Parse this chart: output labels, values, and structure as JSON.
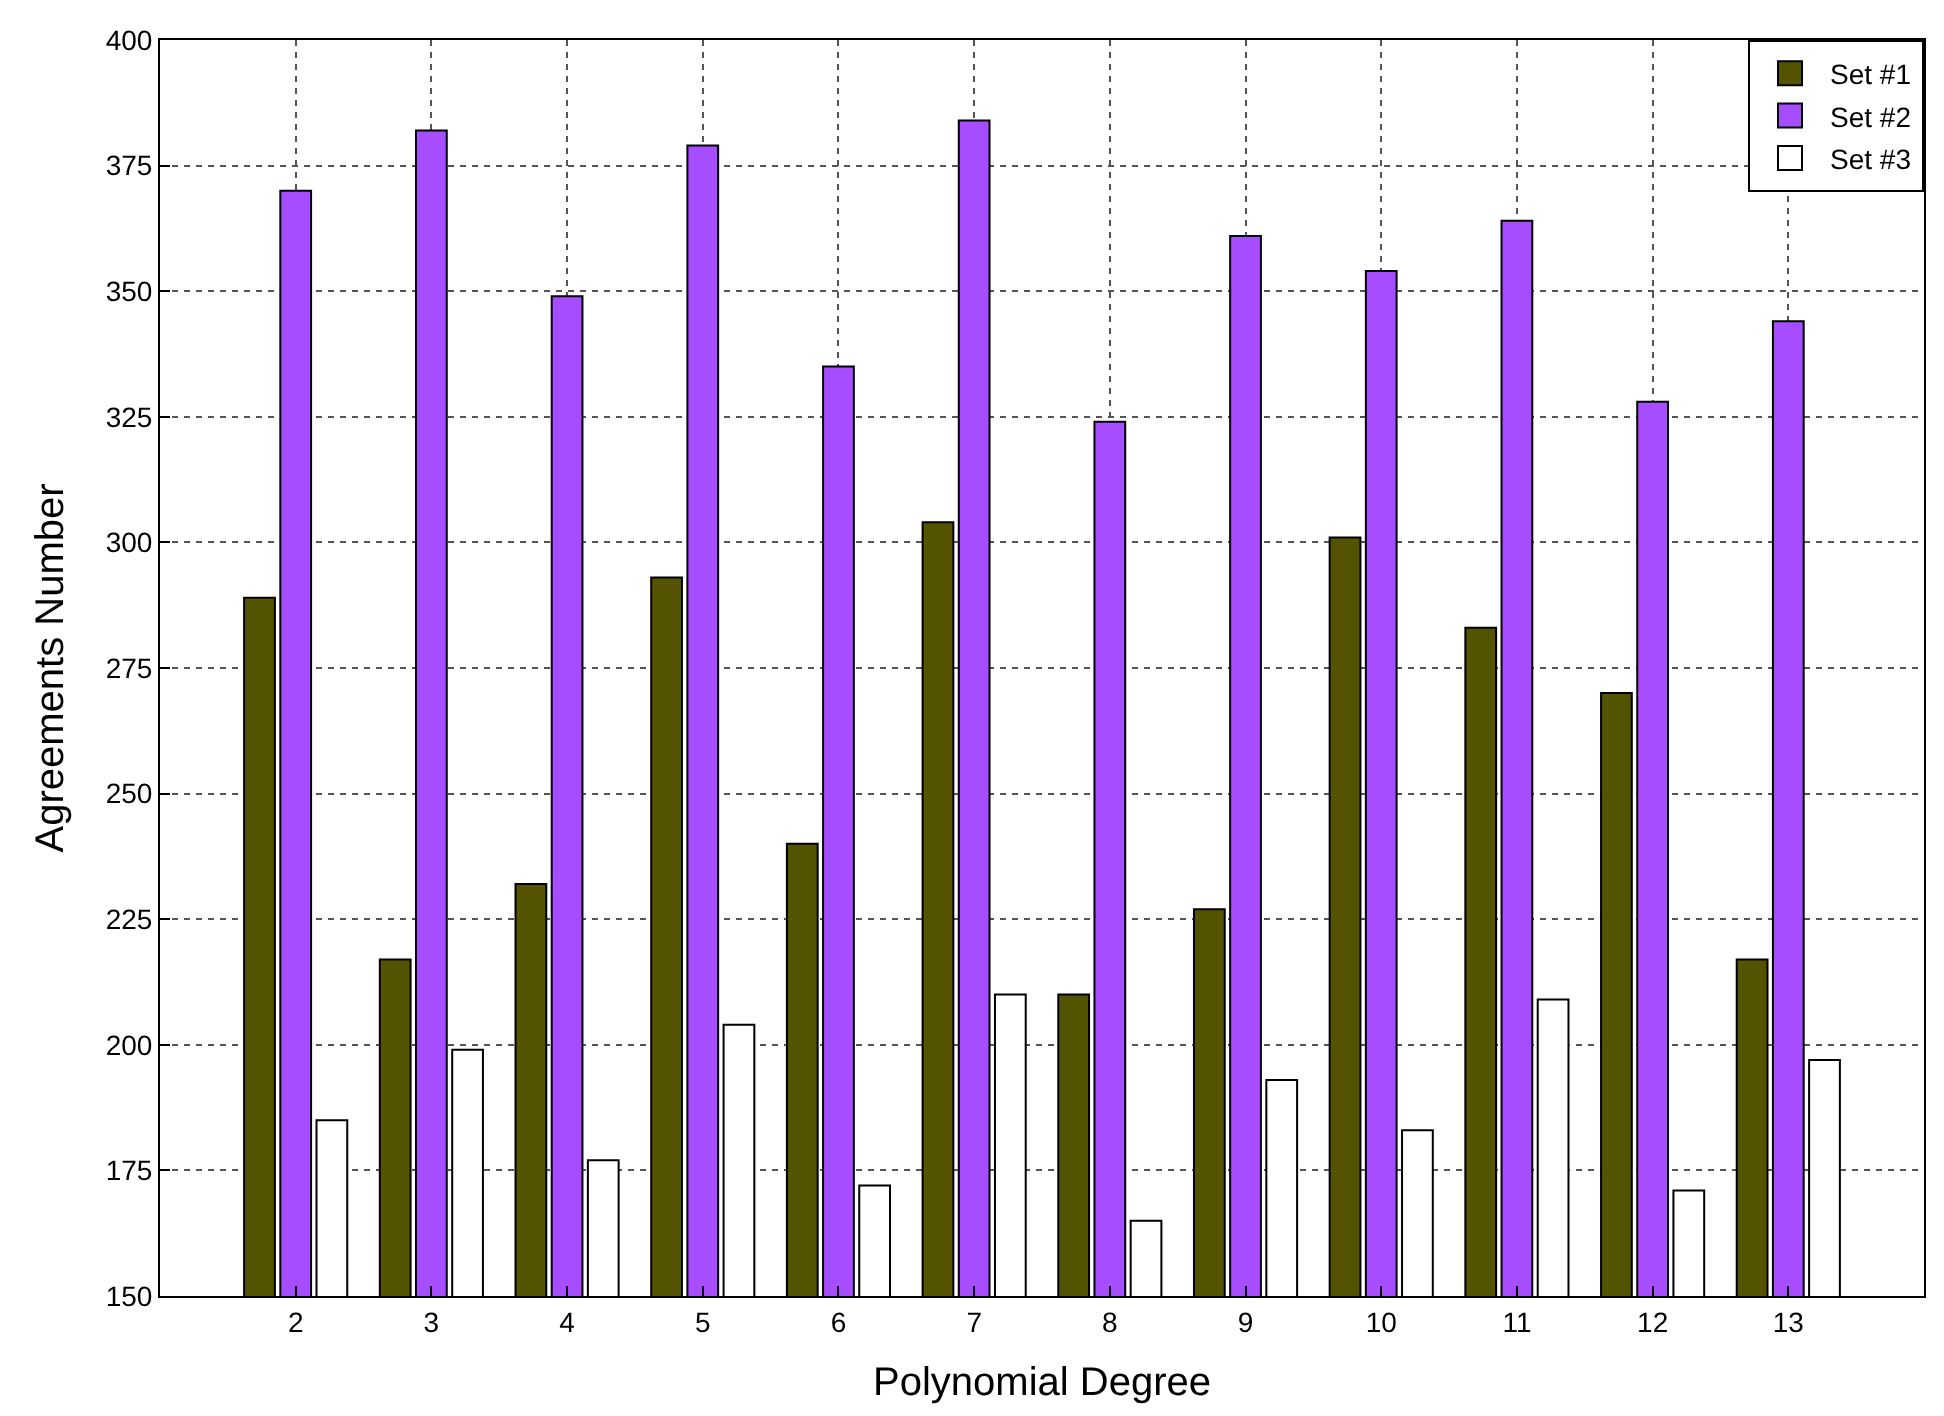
{
  "chart_data": {
    "type": "bar",
    "xlabel": "Polynomial Degree",
    "ylabel": "Agreements Number",
    "x": [
      2,
      3,
      4,
      5,
      6,
      7,
      8,
      9,
      10,
      11,
      12,
      13
    ],
    "series": [
      {
        "name": "Set #1",
        "color": "#545400",
        "values": [
          289,
          217,
          232,
          293,
          240,
          304,
          210,
          227,
          301,
          283,
          270,
          217
        ]
      },
      {
        "name": "Set #2",
        "color": "#a64dff",
        "values": [
          370,
          382,
          349,
          379,
          335,
          384,
          324,
          361,
          354,
          364,
          328,
          344
        ]
      },
      {
        "name": "Set #3",
        "color": "#ffffff",
        "values": [
          185,
          199,
          177,
          204,
          172,
          210,
          165,
          193,
          183,
          209,
          171,
          197
        ]
      }
    ],
    "xlim": [
      1,
      14
    ],
    "xticks": [
      2,
      3,
      4,
      5,
      6,
      7,
      8,
      9,
      10,
      11,
      12,
      13
    ],
    "ylim": [
      150,
      400
    ],
    "yticks": [
      150,
      175,
      200,
      225,
      250,
      275,
      300,
      325,
      350,
      375,
      400
    ],
    "grid": true,
    "legend": "top right"
  }
}
